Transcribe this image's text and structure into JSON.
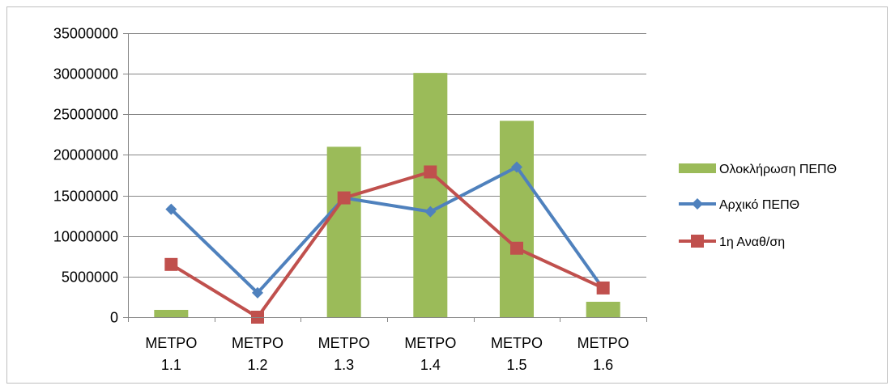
{
  "chart_data": {
    "type": "bar",
    "categories": [
      [
        "ΜΕΤΡΟ",
        "1.1"
      ],
      [
        "ΜΕΤΡΟ",
        "1.2"
      ],
      [
        "ΜΕΤΡΟ",
        "1.3"
      ],
      [
        "ΜΕΤΡΟ",
        "1.4"
      ],
      [
        "ΜΕΤΡΟ",
        "1.5"
      ],
      [
        "ΜΕΤΡΟ",
        "1.6"
      ]
    ],
    "ylim": [
      0,
      35000000
    ],
    "yticks": [
      0,
      5000000,
      10000000,
      15000000,
      20000000,
      25000000,
      30000000,
      35000000
    ],
    "grid": true,
    "legend_position": "right",
    "series": [
      {
        "name": "Ολοκλήρωση ΠΕΠΘ",
        "kind": "bar",
        "color": "#9bbb59",
        "values": [
          900000,
          0,
          21000000,
          30100000,
          24200000,
          1900000
        ]
      },
      {
        "name": "Αρχικό ΠΕΠΘ",
        "kind": "line",
        "marker": "diamond",
        "color": "#4f81bd",
        "values": [
          13300000,
          3000000,
          14700000,
          13000000,
          18500000,
          3500000
        ]
      },
      {
        "name": "1η Αναθ/ση",
        "kind": "line",
        "marker": "square",
        "color": "#c0504d",
        "values": [
          6500000,
          0,
          14700000,
          17900000,
          8500000,
          3600000
        ]
      }
    ]
  }
}
